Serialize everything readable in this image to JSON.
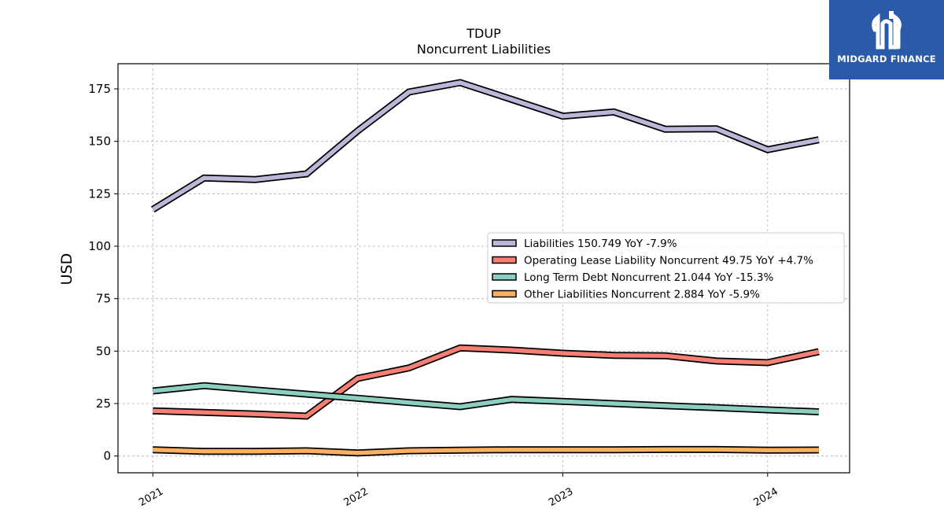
{
  "chart_data": {
    "type": "line",
    "title": "TDUP",
    "subtitle": "Noncurrent  Liabilities",
    "ylabel": "USD",
    "xlabel": "",
    "ylim": [
      -8,
      187
    ],
    "xlim": [
      2020.83,
      2024.4
    ],
    "yticks": [
      0,
      25,
      50,
      75,
      100,
      125,
      150,
      175
    ],
    "xticks": [
      {
        "value": 2021,
        "label": "2021"
      },
      {
        "value": 2022,
        "label": "2022"
      },
      {
        "value": 2023,
        "label": "2023"
      },
      {
        "value": 2024,
        "label": "2024"
      }
    ],
    "grid": true,
    "legend_position": "center-right",
    "x": [
      2021.0,
      2021.25,
      2021.5,
      2021.75,
      2022.0,
      2022.25,
      2022.5,
      2022.75,
      2023.0,
      2023.25,
      2023.5,
      2023.75,
      2024.0,
      2024.25
    ],
    "series": [
      {
        "name": "Liabilities  150.749 YoY -7.9%",
        "color": "#bcb6d8",
        "values": [
          117.5,
          132.5,
          131.8,
          134.5,
          155.0,
          173.5,
          178.0,
          170.0,
          162.0,
          164.0,
          155.8,
          156.0,
          146.0,
          150.749
        ]
      },
      {
        "name": "Operating Lease Liability Noncurrent  49.75 YoY +4.7%",
        "color": "#f47f72",
        "values": [
          21.5,
          20.8,
          20.0,
          19.0,
          37.0,
          42.0,
          51.5,
          50.5,
          49.0,
          48.0,
          47.8,
          45.3,
          44.5,
          49.75
        ]
      },
      {
        "name": "Long Term Debt Noncurrent  21.044 YoY -15.3%",
        "color": "#8ccfc1",
        "values": [
          31.0,
          33.5,
          31.5,
          29.5,
          27.5,
          25.5,
          23.5,
          27.0,
          26.0,
          25.0,
          24.0,
          23.0,
          22.0,
          21.044
        ]
      },
      {
        "name": "Other Liabilities Noncurrent  2.884 YoY -5.9%",
        "color": "#f9b061",
        "values": [
          3.0,
          2.2,
          2.2,
          2.5,
          1.5,
          2.5,
          2.8,
          3.0,
          3.0,
          3.0,
          3.1,
          3.1,
          2.8,
          2.884
        ]
      }
    ]
  },
  "logo": {
    "text": "MIDGARD FINANCE",
    "background": "#2a5aa8"
  }
}
